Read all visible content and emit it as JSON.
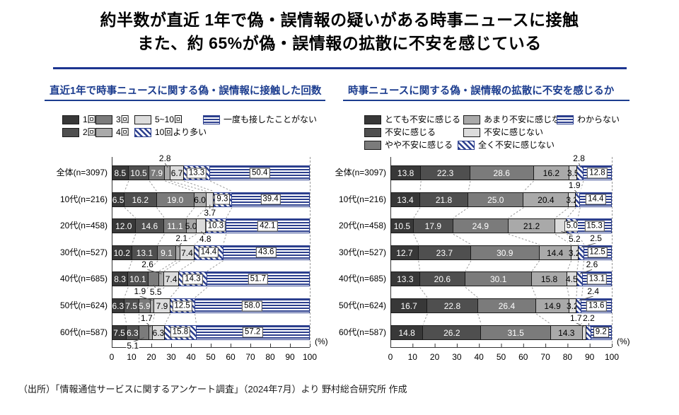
{
  "page": {
    "title_line1": "約半数が直近 1年で偽・誤情報の疑いがある時事ニュースに接触",
    "title_line2": "また、約 65%が偽・誤情報の拡散に不安を感じている",
    "source_note": "（出所）「情報通信サービスに関するアンケート調査」（2024年7月）より 野村総合研究所 作成"
  },
  "colors": {
    "navy_stripe": "#2c3f8e",
    "navy_title": "#1c3d8f",
    "rule": "#1c3590",
    "seg_colors": [
      "#383838",
      "#4f4f4f",
      "#7b7b7b",
      "#a9a9a9",
      "#dcdcdc"
    ]
  },
  "chart_data": [
    {
      "type": "bar",
      "variant": "horizontal-stacked-100",
      "title": "直近1年で時事ニュースに関する偽・誤情報に接触した回数",
      "categories": [
        "全体(n=3097)",
        "10代(n=216)",
        "20代(n=458)",
        "30代(n=527)",
        "40代(n=685)",
        "50代(n=624)",
        "60代(n=587)"
      ],
      "series": [
        {
          "name": "1回",
          "style": "solid-0",
          "values": [
            8.5,
            6.5,
            12.0,
            10.2,
            8.3,
            6.3,
            7.5
          ]
        },
        {
          "name": "2回",
          "style": "solid-1",
          "values": [
            10.5,
            16.2,
            14.6,
            13.1,
            10.1,
            7.5,
            6.3
          ]
        },
        {
          "name": "3回",
          "style": "solid-2",
          "values": [
            7.9,
            19.0,
            11.1,
            9.1,
            5.5,
            5.9,
            5.1
          ]
        },
        {
          "name": "4回",
          "style": "solid-3",
          "values": [
            2.8,
            6.0,
            5.0,
            2.1,
            2.6,
            1.9,
            1.7
          ]
        },
        {
          "name": "5~10回",
          "style": "solid-4",
          "values": [
            6.7,
            3.7,
            4.8,
            7.4,
            7.4,
            7.9,
            6.3
          ]
        },
        {
          "name": "10回より多い",
          "style": "diag-stripe",
          "values": [
            13.3,
            9.3,
            10.3,
            14.4,
            14.3,
            12.5,
            15.8
          ]
        },
        {
          "name": "一度も接したことがない",
          "style": "h-stripe",
          "values": [
            50.4,
            39.4,
            42.1,
            43.6,
            51.7,
            58.0,
            57.2
          ]
        }
      ],
      "callouts": [
        {
          "row": 0,
          "series": 3,
          "pos": "above",
          "dx": -4
        },
        {
          "row": 1,
          "series": 4,
          "pos": "below",
          "dx": 0
        },
        {
          "row": 2,
          "series": 4,
          "pos": "below",
          "dx": 6
        },
        {
          "row": 3,
          "series": 3,
          "pos": "above",
          "dx": 5
        },
        {
          "row": 4,
          "series": 2,
          "pos": "below",
          "dx": 3
        },
        {
          "row": 4,
          "series": 3,
          "pos": "above",
          "dx": -20
        },
        {
          "row": 5,
          "series": 3,
          "pos": "above",
          "dx": -18
        },
        {
          "row": 6,
          "series": 2,
          "pos": "below",
          "dx": -16
        },
        {
          "row": 6,
          "series": 3,
          "pos": "above",
          "dx": -6
        }
      ],
      "x_ticks": [
        0,
        10,
        20,
        30,
        40,
        50,
        60,
        70,
        80,
        90,
        100
      ],
      "x_unit": "(%)",
      "xlim": [
        0,
        100
      ],
      "legend_rows": [
        [
          "1回",
          "3回",
          "5~10回",
          "一度も接したことがない"
        ],
        [
          "2回",
          "4回",
          "10回より多い"
        ]
      ]
    },
    {
      "type": "bar",
      "variant": "horizontal-stacked-100",
      "title": "時事ニュースに関する偽・誤情報の拡散に不安を感じるか",
      "categories": [
        "全体(n=3097)",
        "10代(n=216)",
        "20代(n=458)",
        "30代(n=527)",
        "40代(n=685)",
        "50代(n=624)",
        "60代(n=587)"
      ],
      "series": [
        {
          "name": "とても不安に感じる",
          "style": "solid-0",
          "values": [
            13.8,
            13.4,
            10.5,
            12.7,
            13.3,
            16.7,
            14.8
          ]
        },
        {
          "name": "不安に感じる",
          "style": "solid-1",
          "values": [
            22.3,
            21.8,
            17.9,
            23.7,
            20.6,
            22.8,
            26.2
          ]
        },
        {
          "name": "やや不安に感じる",
          "style": "solid-2",
          "values": [
            28.6,
            25.0,
            24.9,
            30.9,
            30.1,
            26.4,
            31.5
          ]
        },
        {
          "name": "あまり不安に感じない",
          "style": "solid-3",
          "values": [
            16.2,
            20.4,
            21.2,
            14.4,
            15.8,
            14.9,
            14.3
          ]
        },
        {
          "name": "不安に感じない",
          "style": "solid-4",
          "values": [
            3.5,
            3.2,
            5.2,
            3.2,
            4.5,
            3.2,
            1.7
          ]
        },
        {
          "name": "全く不安に感じない",
          "style": "diag-stripe",
          "values": [
            2.8,
            1.9,
            5.0,
            2.5,
            2.6,
            2.4,
            2.2
          ]
        },
        {
          "name": "わからない",
          "style": "h-stripe",
          "values": [
            12.8,
            14.4,
            15.3,
            12.5,
            13.1,
            13.6,
            9.2
          ]
        }
      ],
      "callouts": [
        {
          "row": 0,
          "series": 5,
          "pos": "above",
          "dx": -2
        },
        {
          "row": 1,
          "series": 5,
          "pos": "above",
          "dx": -5
        },
        {
          "row": 2,
          "series": 4,
          "pos": "below",
          "dx": 19
        },
        {
          "row": 3,
          "series": 5,
          "pos": "above",
          "dx": 21
        },
        {
          "row": 4,
          "series": 5,
          "pos": "above",
          "dx": 17
        },
        {
          "row": 5,
          "series": 5,
          "pos": "above",
          "dx": 20
        },
        {
          "row": 6,
          "series": 4,
          "pos": "above",
          "dx": -12
        },
        {
          "row": 6,
          "series": 5,
          "pos": "above",
          "dx": 0
        }
      ],
      "x_ticks": [
        0,
        10,
        20,
        30,
        40,
        50,
        60,
        70,
        80,
        90,
        100
      ],
      "x_unit": "(%)",
      "xlim": [
        0,
        100
      ],
      "legend_rows": [
        [
          "とても不安に感じる",
          "あまり不安に感じない",
          "わからない"
        ],
        [
          "不安に感じる",
          "不安に感じない"
        ],
        [
          "やや不安に感じる",
          "全く不安に感じない"
        ]
      ]
    }
  ]
}
